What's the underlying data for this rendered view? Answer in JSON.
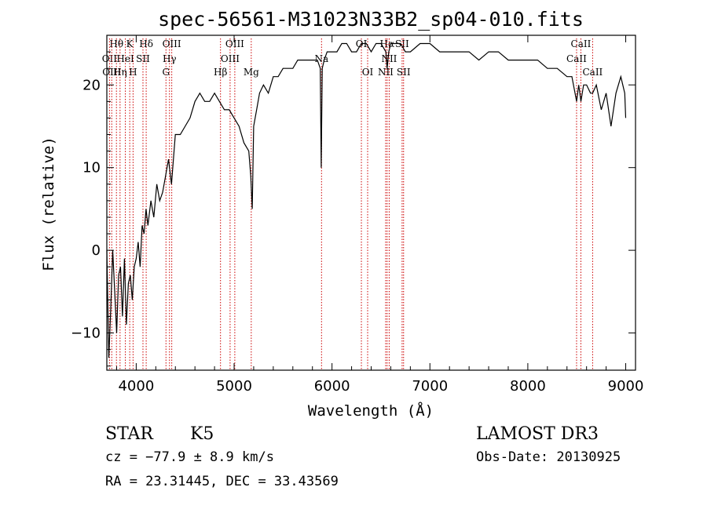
{
  "title": "spec-56561-M31023N33B2_sp04-010.fits",
  "info": {
    "class_label": "STAR",
    "subclass": "K5",
    "survey": "LAMOST DR3",
    "cz": "cz = −77.9 ± 8.9 km/s",
    "obs_date": "Obs-Date: 20130925",
    "coords": "RA =  23.31445, DEC =  33.43569"
  },
  "chart_data": {
    "type": "line",
    "title": "spec-56561-M31023N33B2_sp04-010.fits",
    "xlabel": "Wavelength (Å)",
    "ylabel": "Flux (relative)",
    "xlim": [
      3700,
      9100
    ],
    "ylim": [
      -14.5,
      26
    ],
    "x_ticks": [
      4000,
      5000,
      6000,
      7000,
      8000,
      9000
    ],
    "y_ticks": [
      -10,
      0,
      10,
      20
    ],
    "line_color": "#000000",
    "marker_color": "#cc0000",
    "series": [
      {
        "x": [
          3700,
          3720,
          3740,
          3760,
          3780,
          3800,
          3820,
          3840,
          3860,
          3880,
          3900,
          3920,
          3940,
          3960,
          3980,
          4000,
          4020,
          4040,
          4060,
          4080,
          4100,
          4120,
          4150,
          4180,
          4210,
          4240,
          4270,
          4300,
          4330,
          4360,
          4400,
          4450,
          4500,
          4550,
          4600,
          4650,
          4700,
          4750,
          4800,
          4850,
          4900,
          4950,
          5000,
          5050,
          5100,
          5150,
          5170,
          5185,
          5200,
          5230,
          5260,
          5300,
          5350,
          5400,
          5450,
          5500,
          5550,
          5600,
          5650,
          5700,
          5750,
          5800,
          5850,
          5880,
          5890,
          5900,
          5920,
          5950,
          6000,
          6050,
          6100,
          6150,
          6200,
          6250,
          6300,
          6350,
          6400,
          6450,
          6500,
          6550,
          6563,
          6580,
          6600,
          6650,
          6700,
          6750,
          6800,
          6900,
          7000,
          7100,
          7200,
          7300,
          7400,
          7500,
          7600,
          7700,
          7800,
          7900,
          8000,
          8100,
          8200,
          8300,
          8400,
          8450,
          8498,
          8520,
          8542,
          8570,
          8600,
          8640,
          8662,
          8700,
          8750,
          8800,
          8850,
          8900,
          8950,
          8970,
          8990,
          9000
        ],
        "y": [
          0,
          -13,
          -7,
          0,
          -5,
          -10,
          -3,
          -2,
          -8,
          -1,
          -9,
          -4,
          -3,
          -6,
          -2,
          -1,
          1,
          -2,
          3,
          2,
          5,
          3,
          6,
          4,
          8,
          6,
          7,
          9,
          11,
          8,
          14,
          14,
          15,
          16,
          18,
          19,
          18,
          18,
          19,
          18,
          17,
          17,
          16,
          15,
          13,
          12,
          9,
          5,
          15,
          17,
          19,
          20,
          19,
          21,
          21,
          22,
          22,
          22,
          23,
          23,
          23,
          23,
          23,
          22,
          10,
          22,
          23,
          24,
          24,
          24,
          25,
          25,
          24,
          24,
          25,
          25,
          24,
          25,
          25,
          24,
          22,
          24,
          25,
          25,
          25,
          24,
          24,
          25,
          25,
          24,
          24,
          24,
          24,
          23,
          24,
          24,
          23,
          23,
          23,
          23,
          22,
          22,
          21,
          21,
          18,
          20,
          18,
          20,
          20,
          19,
          19,
          20,
          17,
          19,
          15,
          19,
          21,
          20,
          19,
          16
        ]
      }
    ],
    "line_markers": [
      {
        "label": "Hθ",
        "x": 3798,
        "row": 0
      },
      {
        "label": "K",
        "x": 3934,
        "row": 0
      },
      {
        "label": "Hδ",
        "x": 4102,
        "row": 0
      },
      {
        "label": "OIII",
        "x": 4363,
        "row": 0
      },
      {
        "label": "OIII",
        "x": 5007,
        "row": 0
      },
      {
        "label": "OI",
        "x": 6300,
        "row": 0
      },
      {
        "label": "Hα",
        "x": 6563,
        "row": 0
      },
      {
        "label": "SII",
        "x": 6716,
        "row": 0
      },
      {
        "label": "CaII",
        "x": 8542,
        "row": 0
      },
      {
        "label": "OII",
        "x": 3727,
        "row": 1
      },
      {
        "label": "HeI",
        "x": 3889,
        "row": 1
      },
      {
        "label": "SII",
        "x": 4069,
        "row": 1
      },
      {
        "label": "Hγ",
        "x": 4340,
        "row": 1
      },
      {
        "label": "OIII",
        "x": 4959,
        "row": 1
      },
      {
        "label": "Na",
        "x": 5893,
        "row": 1
      },
      {
        "label": "NII",
        "x": 6584,
        "row": 1
      },
      {
        "label": "CaII",
        "x": 8498,
        "row": 1
      },
      {
        "label": "OIII",
        "x": 3750,
        "row": 2
      },
      {
        "label": "Hη",
        "x": 3835,
        "row": 2
      },
      {
        "label": "H",
        "x": 3968,
        "row": 2
      },
      {
        "label": "G",
        "x": 4304,
        "row": 2
      },
      {
        "label": "Hβ",
        "x": 4861,
        "row": 2
      },
      {
        "label": "Mg",
        "x": 5175,
        "row": 2
      },
      {
        "label": "OI",
        "x": 6364,
        "row": 2
      },
      {
        "label": "NII",
        "x": 6548,
        "row": 2
      },
      {
        "label": "SII",
        "x": 6731,
        "row": 2
      },
      {
        "label": "CaII",
        "x": 8662,
        "row": 2
      }
    ]
  }
}
